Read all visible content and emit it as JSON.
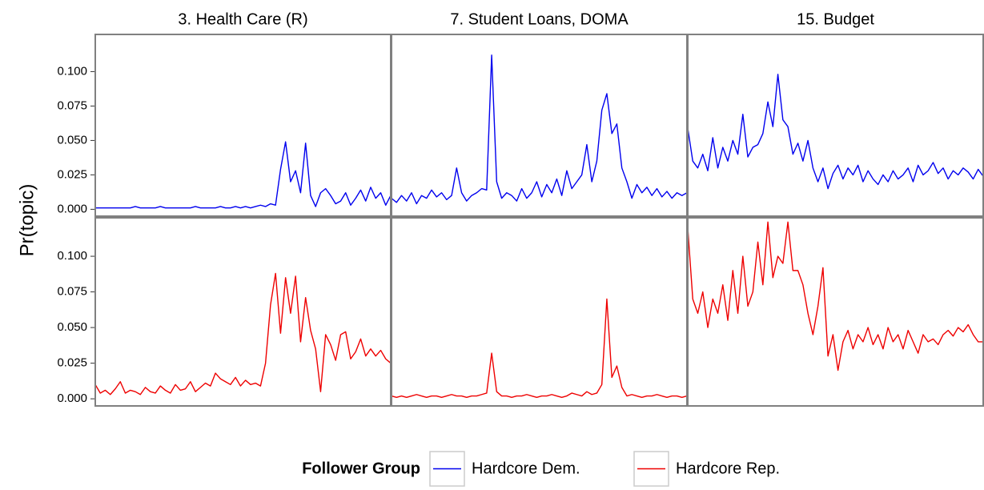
{
  "chart_data": {
    "type": "line",
    "facets": [
      "3. Health Care (R)",
      "7. Student Loans, DOMA",
      "15. Budget"
    ],
    "ylabel": "Pr(topic)",
    "legend_title": "Follower Group",
    "ylim": [
      -0.005,
      0.127
    ],
    "yticks": [
      {
        "value": 0,
        "label": "0.000"
      },
      {
        "value": 0.025,
        "label": "0.025"
      },
      {
        "value": 0.05,
        "label": "0.050"
      },
      {
        "value": 0.075,
        "label": "0.075"
      },
      {
        "value": 0.1,
        "label": "0.100"
      }
    ],
    "series": [
      {
        "name": "Hardcore Dem.",
        "color": "#0000ee",
        "values": [
          [
            0.001,
            0.001,
            0.001,
            0.001,
            0.001,
            0.001,
            0.001,
            0.001,
            0.002,
            0.001,
            0.001,
            0.001,
            0.001,
            0.002,
            0.001,
            0.001,
            0.001,
            0.001,
            0.001,
            0.001,
            0.002,
            0.001,
            0.001,
            0.001,
            0.001,
            0.002,
            0.001,
            0.001,
            0.002,
            0.001,
            0.002,
            0.001,
            0.002,
            0.003,
            0.002,
            0.004,
            0.003,
            0.029,
            0.049,
            0.02,
            0.028,
            0.012,
            0.048,
            0.01,
            0.002,
            0.012,
            0.015,
            0.01,
            0.004,
            0.006,
            0.012,
            0.003,
            0.008,
            0.014,
            0.006,
            0.016,
            0.008,
            0.012,
            0.003,
            0.01
          ],
          [
            0.008,
            0.005,
            0.01,
            0.006,
            0.012,
            0.004,
            0.01,
            0.008,
            0.014,
            0.009,
            0.012,
            0.007,
            0.01,
            0.03,
            0.012,
            0.006,
            0.01,
            0.012,
            0.015,
            0.014,
            0.112,
            0.02,
            0.008,
            0.012,
            0.01,
            0.006,
            0.015,
            0.008,
            0.012,
            0.02,
            0.009,
            0.018,
            0.012,
            0.022,
            0.01,
            0.028,
            0.015,
            0.02,
            0.025,
            0.047,
            0.02,
            0.035,
            0.072,
            0.084,
            0.055,
            0.062,
            0.03,
            0.02,
            0.008,
            0.018,
            0.012,
            0.016,
            0.01,
            0.015,
            0.009,
            0.013,
            0.008,
            0.012,
            0.01,
            0.012
          ],
          [
            0.059,
            0.035,
            0.03,
            0.04,
            0.028,
            0.052,
            0.03,
            0.045,
            0.035,
            0.05,
            0.04,
            0.069,
            0.038,
            0.045,
            0.047,
            0.055,
            0.078,
            0.06,
            0.098,
            0.065,
            0.06,
            0.04,
            0.048,
            0.035,
            0.05,
            0.03,
            0.02,
            0.03,
            0.015,
            0.026,
            0.032,
            0.022,
            0.03,
            0.025,
            0.032,
            0.02,
            0.028,
            0.022,
            0.018,
            0.025,
            0.02,
            0.028,
            0.022,
            0.025,
            0.03,
            0.02,
            0.032,
            0.025,
            0.028,
            0.034,
            0.026,
            0.03,
            0.022,
            0.028,
            0.025,
            0.03,
            0.027,
            0.022,
            0.029,
            0.024
          ]
        ]
      },
      {
        "name": "Hardcore Rep.",
        "color": "#ee0000",
        "values": [
          [
            0.01,
            0.004,
            0.006,
            0.003,
            0.007,
            0.012,
            0.004,
            0.006,
            0.005,
            0.003,
            0.008,
            0.005,
            0.004,
            0.009,
            0.006,
            0.004,
            0.01,
            0.006,
            0.007,
            0.012,
            0.005,
            0.008,
            0.011,
            0.009,
            0.018,
            0.014,
            0.012,
            0.01,
            0.015,
            0.009,
            0.013,
            0.01,
            0.011,
            0.009,
            0.025,
            0.066,
            0.088,
            0.046,
            0.085,
            0.06,
            0.086,
            0.04,
            0.071,
            0.048,
            0.035,
            0.005,
            0.045,
            0.038,
            0.027,
            0.045,
            0.047,
            0.028,
            0.033,
            0.042,
            0.03,
            0.035,
            0.03,
            0.034,
            0.028,
            0.025
          ],
          [
            0.002,
            0.001,
            0.002,
            0.001,
            0.002,
            0.003,
            0.002,
            0.001,
            0.002,
            0.002,
            0.001,
            0.002,
            0.003,
            0.002,
            0.002,
            0.001,
            0.002,
            0.002,
            0.003,
            0.004,
            0.032,
            0.005,
            0.002,
            0.002,
            0.001,
            0.002,
            0.002,
            0.003,
            0.002,
            0.001,
            0.002,
            0.002,
            0.003,
            0.002,
            0.001,
            0.002,
            0.004,
            0.003,
            0.002,
            0.005,
            0.003,
            0.004,
            0.01,
            0.07,
            0.015,
            0.023,
            0.008,
            0.002,
            0.003,
            0.002,
            0.001,
            0.002,
            0.002,
            0.003,
            0.002,
            0.001,
            0.002,
            0.002,
            0.001,
            0.002
          ],
          [
            0.12,
            0.07,
            0.06,
            0.075,
            0.05,
            0.07,
            0.06,
            0.08,
            0.055,
            0.09,
            0.06,
            0.1,
            0.065,
            0.075,
            0.11,
            0.08,
            0.124,
            0.085,
            0.1,
            0.095,
            0.124,
            0.09,
            0.09,
            0.08,
            0.06,
            0.045,
            0.065,
            0.092,
            0.03,
            0.045,
            0.02,
            0.04,
            0.048,
            0.035,
            0.045,
            0.04,
            0.05,
            0.038,
            0.045,
            0.035,
            0.05,
            0.04,
            0.045,
            0.035,
            0.048,
            0.04,
            0.032,
            0.045,
            0.04,
            0.042,
            0.038,
            0.045,
            0.048,
            0.044,
            0.05,
            0.047,
            0.052,
            0.045,
            0.04,
            0.04
          ]
        ]
      }
    ]
  }
}
